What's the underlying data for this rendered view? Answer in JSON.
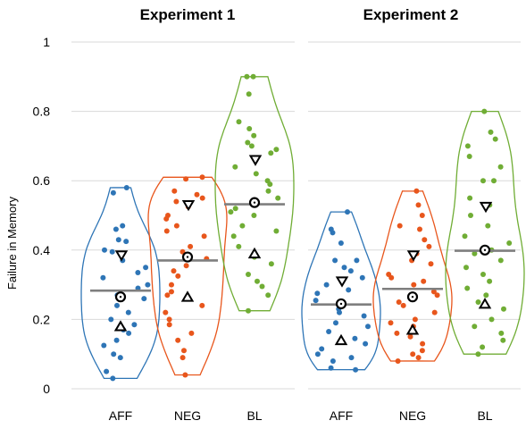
{
  "chart_data": {
    "type": "violin",
    "ylabel": "Failure in Memory",
    "ylim": [
      0,
      1
    ],
    "yticks": [
      "0",
      "0.2",
      "0.4",
      "0.6",
      "0.8",
      "1"
    ],
    "grid": true,
    "panels": [
      {
        "title": "Experiment 1",
        "categories": [
          {
            "name": "AFF",
            "color": "#2e75b6",
            "range": [
              0.03,
              0.58
            ],
            "mean": 0.283,
            "median": 0.265,
            "marker_down": 0.385,
            "marker_up": 0.18,
            "points": [
              0.58,
              0.565,
              0.47,
              0.46,
              0.43,
              0.425,
              0.4,
              0.395,
              0.37,
              0.35,
              0.335,
              0.32,
              0.3,
              0.29,
              0.27,
              0.26,
              0.24,
              0.22,
              0.2,
              0.185,
              0.17,
              0.16,
              0.14,
              0.125,
              0.1,
              0.09,
              0.05,
              0.03
            ]
          },
          {
            "name": "NEG",
            "color": "#e8561c",
            "range": [
              0.04,
              0.61
            ],
            "mean": 0.37,
            "median": 0.38,
            "marker_down": 0.53,
            "marker_up": 0.265,
            "points": [
              0.61,
              0.605,
              0.57,
              0.56,
              0.55,
              0.54,
              0.525,
              0.5,
              0.49,
              0.47,
              0.455,
              0.44,
              0.41,
              0.395,
              0.375,
              0.355,
              0.34,
              0.325,
              0.3,
              0.28,
              0.27,
              0.24,
              0.22,
              0.2,
              0.185,
              0.16,
              0.14,
              0.11,
              0.09,
              0.04
            ]
          },
          {
            "name": "BL",
            "color": "#70ad35",
            "range": [
              0.225,
              0.9
            ],
            "mean": 0.532,
            "median": 0.537,
            "marker_down": 0.66,
            "marker_up": 0.39,
            "points": [
              0.9,
              0.9,
              0.85,
              0.77,
              0.75,
              0.73,
              0.71,
              0.7,
              0.69,
              0.68,
              0.64,
              0.62,
              0.6,
              0.59,
              0.57,
              0.55,
              0.52,
              0.51,
              0.5,
              0.47,
              0.455,
              0.44,
              0.41,
              0.38,
              0.36,
              0.33,
              0.31,
              0.295,
              0.27,
              0.225
            ]
          }
        ]
      },
      {
        "title": "Experiment 2",
        "categories": [
          {
            "name": "AFF",
            "color": "#2e75b6",
            "range": [
              0.055,
              0.51
            ],
            "mean": 0.243,
            "median": 0.245,
            "marker_down": 0.31,
            "marker_up": 0.14,
            "points": [
              0.51,
              0.46,
              0.45,
              0.42,
              0.37,
              0.37,
              0.35,
              0.34,
              0.32,
              0.3,
              0.285,
              0.275,
              0.255,
              0.245,
              0.23,
              0.22,
              0.21,
              0.19,
              0.18,
              0.165,
              0.145,
              0.13,
              0.115,
              0.1,
              0.09,
              0.08,
              0.06,
              0.055
            ]
          },
          {
            "name": "NEG",
            "color": "#e8561c",
            "range": [
              0.08,
              0.57
            ],
            "mean": 0.288,
            "median": 0.265,
            "marker_down": 0.385,
            "marker_up": 0.17,
            "points": [
              0.57,
              0.53,
              0.5,
              0.47,
              0.46,
              0.43,
              0.41,
              0.39,
              0.37,
              0.36,
              0.33,
              0.32,
              0.31,
              0.3,
              0.28,
              0.27,
              0.26,
              0.25,
              0.24,
              0.22,
              0.2,
              0.19,
              0.18,
              0.16,
              0.15,
              0.13,
              0.11,
              0.1,
              0.09,
              0.08
            ]
          },
          {
            "name": "BL",
            "color": "#70ad35",
            "range": [
              0.1,
              0.8
            ],
            "mean": 0.398,
            "median": 0.4,
            "marker_down": 0.525,
            "marker_up": 0.245,
            "points": [
              0.8,
              0.74,
              0.72,
              0.7,
              0.67,
              0.64,
              0.6,
              0.6,
              0.55,
              0.53,
              0.5,
              0.47,
              0.44,
              0.42,
              0.4,
              0.39,
              0.37,
              0.35,
              0.33,
              0.31,
              0.29,
              0.27,
              0.25,
              0.23,
              0.2,
              0.18,
              0.16,
              0.14,
              0.12,
              0.1
            ]
          }
        ]
      }
    ]
  }
}
